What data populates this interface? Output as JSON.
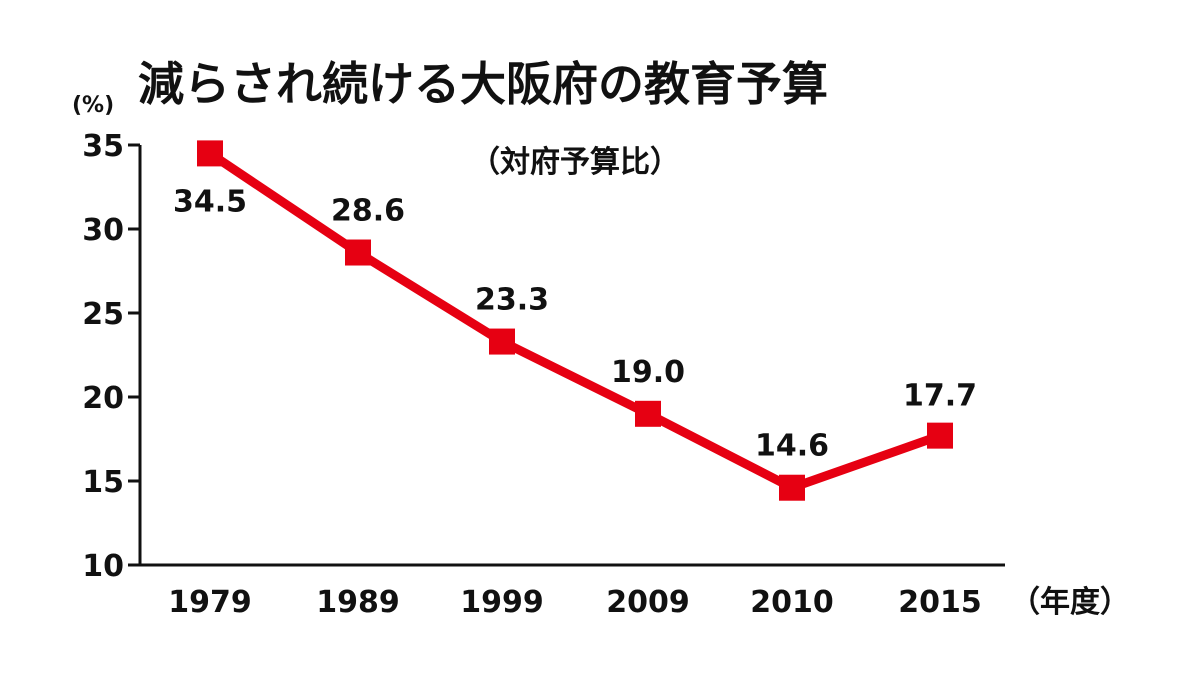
{
  "chart_data": {
    "type": "line",
    "title": "減らされ続ける大阪府の教育予算",
    "subtitle": "（対府予算比）",
    "ylabel": "(%)",
    "xlabel": "（年度）",
    "categories": [
      "1979",
      "1989",
      "1999",
      "2009",
      "2010",
      "2015"
    ],
    "series": [
      {
        "values": [
          34.5,
          28.6,
          23.3,
          19.0,
          14.6,
          17.7
        ],
        "labels": [
          "34.5",
          "28.6",
          "23.3",
          "19.0",
          "14.6",
          "17.7"
        ],
        "color": "#e60012"
      }
    ],
    "ylim": [
      10,
      35
    ],
    "yticks": [
      "35",
      "30",
      "25",
      "20",
      "15",
      "10"
    ],
    "grid": false,
    "legend": "none"
  }
}
